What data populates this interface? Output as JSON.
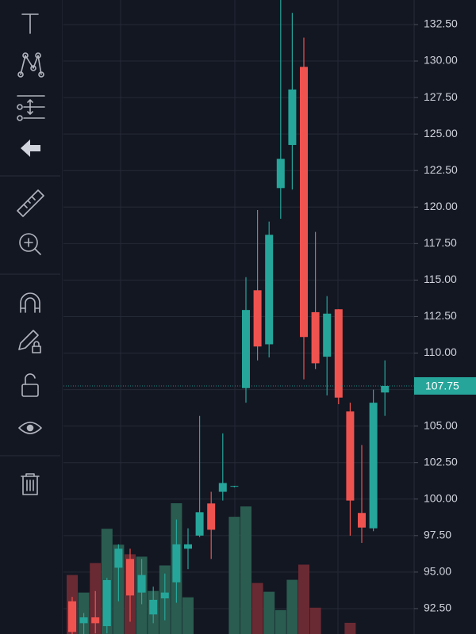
{
  "chart_data": {
    "type": "candlestick",
    "ylim": [
      90.76,
      134.18
    ],
    "yticks": [
      {
        "value": 132.5,
        "label": "132.50"
      },
      {
        "value": 130,
        "label": "130.00"
      },
      {
        "value": 127.5,
        "label": "127.50"
      },
      {
        "value": 125,
        "label": "125.00"
      },
      {
        "value": 122.5,
        "label": "122.50"
      },
      {
        "value": 120,
        "label": "120.00"
      },
      {
        "value": 117.5,
        "label": "117.50"
      },
      {
        "value": 115,
        "label": "115.00"
      },
      {
        "value": 112.5,
        "label": "112.50"
      },
      {
        "value": 110,
        "label": "110.00"
      },
      {
        "value": 107.5,
        "label": "107.50"
      },
      {
        "value": 105,
        "label": "105.00"
      },
      {
        "value": 102.5,
        "label": "102.50"
      },
      {
        "value": 100,
        "label": "100.00"
      },
      {
        "value": 97.5,
        "label": "97.50"
      },
      {
        "value": 95,
        "label": "95.00"
      },
      {
        "value": 92.5,
        "label": "92.50"
      }
    ],
    "last_price": 107.75,
    "grid": true,
    "up_color": "#26a69a",
    "down_color": "#ef5350",
    "up_volume_color": "#2a5c50",
    "down_volume_color": "#6a2a33",
    "open": [
      93.0,
      91.5,
      91.9,
      91.3,
      95.3,
      95.9,
      93.6,
      92.1,
      93.2,
      94.3,
      96.6,
      97.5,
      99.7,
      100.5,
      100.85,
      107.6,
      114.3,
      110.6,
      121.3,
      124.25,
      129.6,
      112.8,
      109.75,
      113.0,
      106.0,
      99.05,
      98.0,
      107.3
    ],
    "high": [
      93.3,
      92.2,
      93.7,
      94.6,
      96.9,
      96.6,
      95.9,
      94.0,
      94.9,
      98.6,
      98.0,
      105.7,
      100.5,
      104.5,
      100.9,
      115.2,
      119.8,
      119.0,
      134.2,
      133.3,
      131.6,
      118.3,
      113.9,
      113.0,
      106.6,
      103.7,
      107.5,
      109.5
    ],
    "low": [
      90.5,
      90.5,
      90.8,
      90.8,
      93.0,
      91.6,
      92.8,
      91.5,
      91.7,
      92.9,
      95.2,
      97.4,
      95.9,
      99.9,
      100.8,
      106.6,
      109.5,
      109.7,
      119.2,
      121.2,
      108.2,
      108.9,
      107.1,
      106.5,
      97.5,
      97.0,
      97.8,
      105.7
    ],
    "close": [
      90.9,
      91.9,
      91.5,
      94.45,
      96.6,
      93.4,
      94.8,
      93.1,
      93.6,
      96.9,
      96.9,
      99.1,
      97.9,
      101.1,
      100.9,
      112.95,
      110.45,
      118.1,
      123.3,
      128.05,
      111.1,
      109.3,
      112.7,
      106.95,
      99.9,
      98.05,
      106.6,
      107.75
    ],
    "volume": [
      74,
      52,
      89,
      132,
      112,
      100,
      97,
      54,
      86,
      164,
      46,
      null,
      null,
      null,
      147,
      160,
      64,
      53,
      30,
      68,
      87,
      33,
      null,
      null,
      14,
      null,
      null,
      null
    ]
  }
}
